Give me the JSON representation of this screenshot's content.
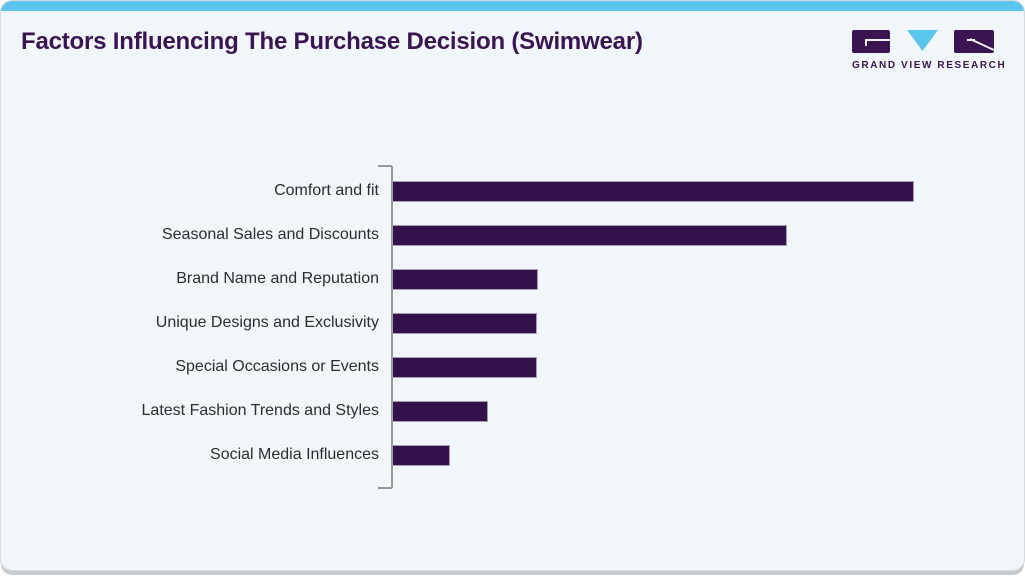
{
  "header": {
    "title": "Factors Influencing The Purchase Decision (Swimwear)",
    "logo_text": "GRAND VIEW RESEARCH"
  },
  "colors": {
    "accent_blue": "#5bc5ee",
    "title_purple": "#3a1551",
    "bar_fill": "#33114a",
    "bar_border": "#a79bb4",
    "card_background": "#f0f6fa",
    "axis_gray": "#97999b",
    "label_gray": "#2d2d2d",
    "bottom_shadow_gray": "#c8cbce"
  },
  "chart_data": {
    "type": "bar",
    "orientation": "horizontal",
    "title": "Factors Influencing The Purchase Decision (Swimwear)",
    "categories": [
      "Comfort and fit",
      "Seasonal Sales and Discounts",
      "Brand Name and Reputation",
      "Unique Designs and Exclusivity",
      "Special Occasions or Events",
      "Latest Fashion Trends and Styles",
      "Social Media Influences"
    ],
    "values": [
      100,
      75.7,
      28.0,
      27.8,
      27.8,
      18.4,
      11.1
    ],
    "values_note": "relative bar length as % of longest bar; chart shows no numeric axis or data labels",
    "xlabel": "",
    "ylabel": "",
    "grid": false,
    "legend": false,
    "bar_color": "#33114a",
    "bar_border_color": "#a79bb4",
    "axis_line_color": "#97999b"
  }
}
